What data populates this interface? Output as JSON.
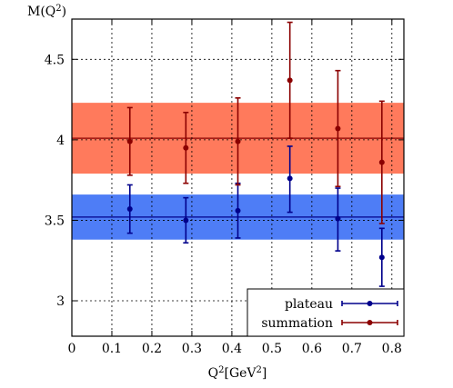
{
  "chart_data": {
    "type": "scatter",
    "title": "",
    "xlabel": "Q^2[GeV^2]",
    "xlabel_main": "Q",
    "xlabel_sup": "2",
    "xlabel_rest": "[GeV",
    "xlabel_sup2": "2",
    "xlabel_close": "]",
    "ylabel": "M(Q^2)",
    "ylabel_main": "M(Q",
    "ylabel_sup": "2",
    "ylabel_close": ")",
    "xlim": [
      0,
      0.83
    ],
    "ylim": [
      2.78,
      4.75
    ],
    "grid": true,
    "legend_position": "bottom-right",
    "x_ticks": [
      "0",
      "0.1",
      "0.2",
      "0.3",
      "0.4",
      "0.5",
      "0.6",
      "0.7",
      "0.8"
    ],
    "x_tick_values": [
      0,
      0.1,
      0.2,
      0.3,
      0.4,
      0.5,
      0.6,
      0.7,
      0.8
    ],
    "y_ticks": [
      "3",
      "3.5",
      "4",
      "4.5"
    ],
    "y_tick_values": [
      3,
      3.5,
      4,
      4.5
    ],
    "series": [
      {
        "name": "plateau",
        "color": "#00008b",
        "band_color": "#3b6ff5",
        "band": {
          "center": 3.52,
          "low": 3.38,
          "high": 3.66
        },
        "points": [
          {
            "x": 0.145,
            "y": 3.57,
            "err_low": 3.42,
            "err_high": 3.72
          },
          {
            "x": 0.285,
            "y": 3.5,
            "err_low": 3.36,
            "err_high": 3.64
          },
          {
            "x": 0.415,
            "y": 3.56,
            "err_low": 3.39,
            "err_high": 3.73
          },
          {
            "x": 0.545,
            "y": 3.76,
            "err_low": 3.55,
            "err_high": 3.96
          },
          {
            "x": 0.665,
            "y": 3.51,
            "err_low": 3.31,
            "err_high": 3.7
          },
          {
            "x": 0.775,
            "y": 3.27,
            "err_low": 3.09,
            "err_high": 3.45
          }
        ]
      },
      {
        "name": "summation",
        "color": "#8b0000",
        "band_color": "#ff6b4a",
        "band": {
          "center": 4.01,
          "low": 3.79,
          "high": 4.23
        },
        "points": [
          {
            "x": 0.145,
            "y": 3.99,
            "err_low": 3.78,
            "err_high": 4.2
          },
          {
            "x": 0.285,
            "y": 3.95,
            "err_low": 3.73,
            "err_high": 4.17
          },
          {
            "x": 0.415,
            "y": 3.99,
            "err_low": 3.72,
            "err_high": 4.26
          },
          {
            "x": 0.545,
            "y": 4.37,
            "err_low": 4.01,
            "err_high": 4.73
          },
          {
            "x": 0.665,
            "y": 4.07,
            "err_low": 3.71,
            "err_high": 4.43
          },
          {
            "x": 0.775,
            "y": 3.86,
            "err_low": 3.48,
            "err_high": 4.24
          }
        ]
      }
    ]
  }
}
